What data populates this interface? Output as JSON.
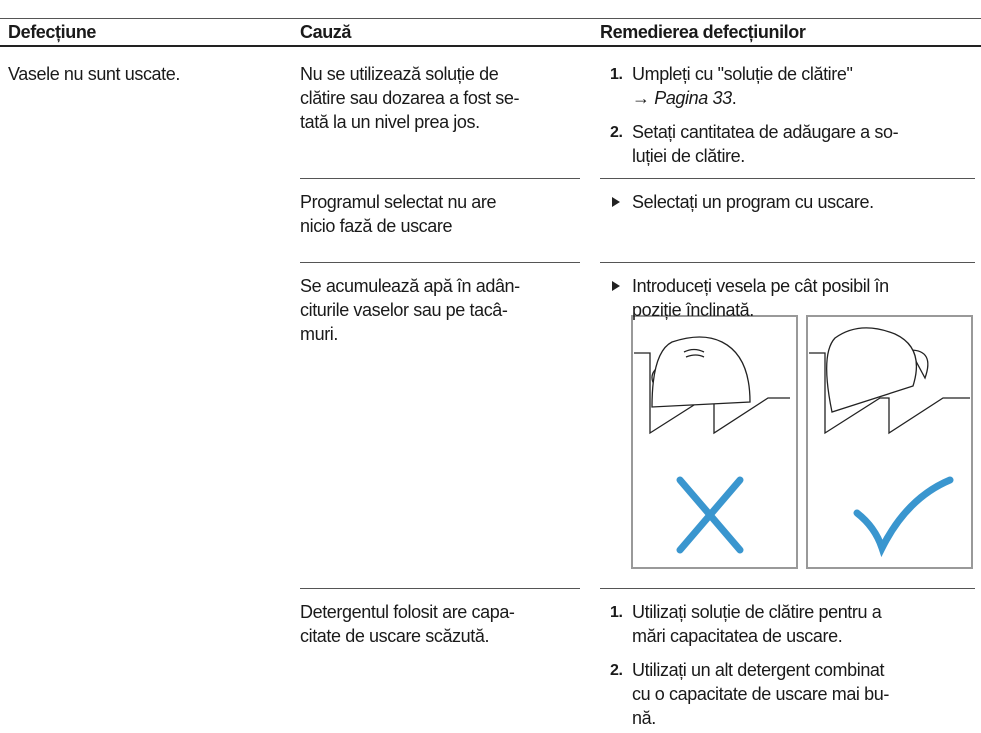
{
  "header": {
    "fault": "Defecțiune",
    "cause": "Cauză",
    "remedy": "Remedierea defecțiunilor"
  },
  "fault": "Vasele nu sunt uscate.",
  "rows": [
    {
      "cause": [
        "Nu se utilizează soluție de",
        "clătire sau dozarea a fost se-",
        "tată la un nivel prea jos."
      ],
      "steps": [
        {
          "number": "1.",
          "lines": [
            "Umpleți cu \"soluție de clătire\""
          ],
          "arrow": "→",
          "link": "Pagina 33",
          "suffix": "."
        },
        {
          "number": "2.",
          "lines": [
            "Setați cantitatea de adăugare a so-",
            "luției de clătire."
          ]
        }
      ]
    },
    {
      "cause": [
        "Programul selectat nu are",
        "nicio fază de uscare"
      ],
      "bullet": [
        "Selectați un program cu uscare."
      ]
    },
    {
      "cause": [
        "Se acumulează apă în adân-",
        "citurile vaselor sau pe tacâ-",
        "muri."
      ],
      "bullet": [
        "Introduceți vesela pe cât posibil în",
        "poziție înclinată."
      ]
    },
    {
      "cause": [
        "Detergentul folosit are capa-",
        "citate de uscare scăzută."
      ],
      "steps": [
        {
          "number": "1.",
          "lines": [
            "Utilizați soluție de clătire pentru a",
            "mări capacitatea de uscare."
          ]
        },
        {
          "number": "2.",
          "lines": [
            "Utilizați un alt detergent combinat",
            "cu o capacitate de uscare mai bu-",
            "nă."
          ]
        }
      ]
    }
  ]
}
